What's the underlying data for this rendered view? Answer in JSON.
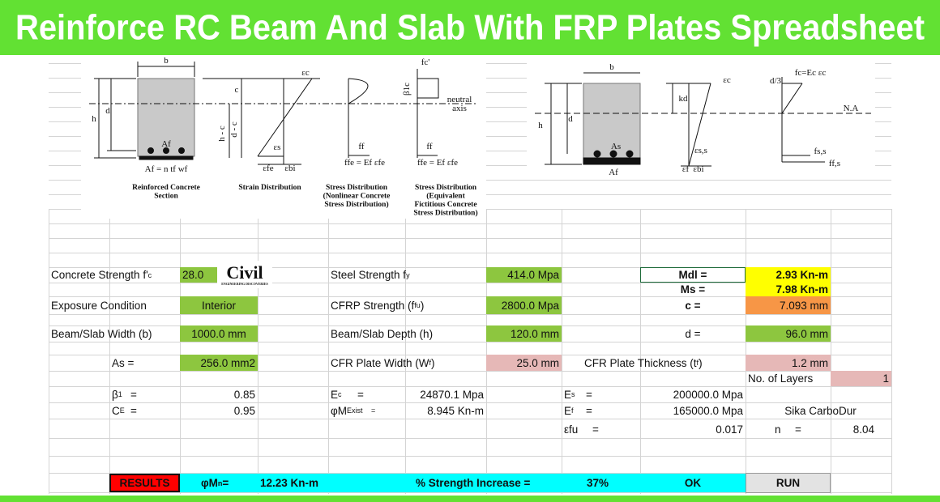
{
  "title": "Reinforce RC Beam And Slab With FRP Plates Spreadsheet",
  "logo": {
    "text": "Civil",
    "tagline": "ENGINEERING DISCOVERIES"
  },
  "diagram_left": {
    "labels": [
      "b",
      "h",
      "d",
      "c",
      "h - c",
      "d - c",
      "Af",
      "Af = n tf wf",
      "εc",
      "εs",
      "εfe",
      "εbi",
      "ff",
      "ffe = Ef εfe",
      "β1c",
      "fc'",
      "ff",
      "ffe = Ef εfe",
      "neutral",
      "axis"
    ],
    "captions": [
      [
        "Reinforced Concrete",
        "Section"
      ],
      [
        "Strain Distribution"
      ],
      [
        "Stress Distribution",
        "(Nonlinear Concrete",
        "Stress Distribution)"
      ],
      [
        "Stress Distribution",
        "(Equivalent",
        "Fictitious Concrete",
        "Stress Distribution)"
      ]
    ]
  },
  "diagram_right": {
    "labels": [
      "b",
      "h",
      "d",
      "kd",
      "As",
      "Af",
      "εc",
      "d/3",
      "fc=Ec εc",
      "N.A",
      "εs,s",
      "εf",
      "εbi",
      "fs,s",
      "ff,s"
    ]
  },
  "sheet": {
    "concrete_strength": {
      "label": {
        "text": "Concrete Strength f'",
        "sub": "c"
      },
      "value": "28.0"
    },
    "steel_strength": {
      "label": {
        "text": "Steel Strength f",
        "sub": "y"
      },
      "value": "414.0 Mpa"
    },
    "mdl": {
      "label": "Mdl  =",
      "value": "2.93 Kn-m"
    },
    "ms": {
      "label": "Ms  =",
      "value": "7.98 Kn-m"
    },
    "exposure": {
      "label": "Exposure Condition",
      "value": "Interior"
    },
    "cfrp_strength": {
      "label": {
        "text": "CFRP Strength (f",
        "sub": "fu",
        "rest": ")"
      },
      "value": "2800.0 Mpa"
    },
    "c": {
      "label": "c  =",
      "value": "7.093 mm"
    },
    "width": {
      "label": "Beam/Slab Width (b)",
      "value": "1000.0 mm"
    },
    "depth": {
      "label": "Beam/Slab Depth (h)",
      "value": "120.0 mm"
    },
    "d": {
      "label": "d  =",
      "value": "96.0 mm"
    },
    "as": {
      "label": "As =",
      "value": "256.0 mm2"
    },
    "plate_width": {
      "label": {
        "text": "CFR Plate Width (W",
        "sub": "f",
        "rest": ")"
      },
      "value": "25.0 mm"
    },
    "plate_thickness": {
      "label": {
        "text": "CFR Plate Thickness (t",
        "sub": "f",
        "rest": ")"
      },
      "value": "1.2 mm"
    },
    "layers": {
      "label": "No. of Layers",
      "value": "1"
    },
    "beta1": {
      "label": {
        "text": "β",
        "sub": "1"
      },
      "eq": "=",
      "value": "0.85"
    },
    "ce": {
      "label": {
        "text": "C",
        "sub": "E"
      },
      "eq": "=",
      "value": "0.95"
    },
    "ec": {
      "label": {
        "text": "E",
        "sub": "c"
      },
      "eq": "=",
      "value": "24870.1 Mpa"
    },
    "phi_m_exist": {
      "label": {
        "text": "φM",
        "sub": "Exist"
      },
      "eq": "=",
      "value": "8.945 Kn-m"
    },
    "es": {
      "label": {
        "text": "E",
        "sub": "s"
      },
      "eq": "=",
      "value": "200000.0 Mpa"
    },
    "ef": {
      "label": {
        "text": "E",
        "sub": "f"
      },
      "eq": "=",
      "value": "165000.0 Mpa"
    },
    "efu": {
      "label": "εfu",
      "eq": "=",
      "value": "0.017"
    },
    "product": "Sika CarboDur",
    "n": {
      "label": "n",
      "eq": "=",
      "value": "8.04"
    }
  },
  "results": {
    "button": "RESULTS",
    "phi_mn": {
      "label": {
        "text": "φM",
        "sub": "n",
        "rest": " ="
      },
      "value": "12.23 Kn-m"
    },
    "strength_increase": {
      "label": "% Strength Increase =",
      "value": "37%"
    },
    "status": "OK",
    "run": "RUN"
  }
}
